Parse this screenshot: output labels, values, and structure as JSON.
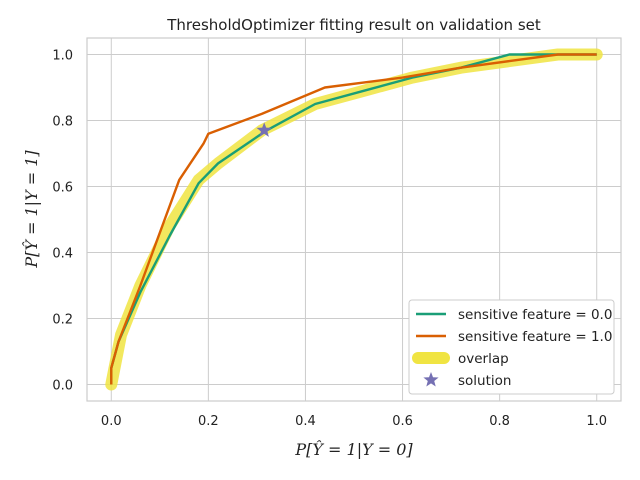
{
  "chart_data": {
    "type": "line",
    "title": "ThresholdOptimizer fitting result on validation set",
    "xlabel": "P[Ŷ = 1|Y = 0]",
    "ylabel": "P[Ŷ = 1|Y = 1]",
    "xlim": [
      -0.05,
      1.05
    ],
    "ylim": [
      -0.05,
      1.05
    ],
    "x_ticks": [
      0.0,
      0.2,
      0.4,
      0.6,
      0.8,
      1.0
    ],
    "y_ticks": [
      0.0,
      0.2,
      0.4,
      0.6,
      0.8,
      1.0
    ],
    "x_tick_labels": [
      "0.0",
      "0.2",
      "0.4",
      "0.6",
      "0.8",
      "1.0"
    ],
    "y_tick_labels": [
      "0.0",
      "0.2",
      "0.4",
      "0.6",
      "0.8",
      "1.0"
    ],
    "grid": true,
    "legend_position": "bottom-right",
    "series": [
      {
        "name": "overlap",
        "kind": "overlap-band",
        "color": "#f0e442",
        "points": [
          [
            0.0,
            0.0
          ],
          [
            0.02,
            0.15
          ],
          [
            0.06,
            0.3
          ],
          [
            0.12,
            0.48
          ],
          [
            0.18,
            0.62
          ],
          [
            0.22,
            0.67
          ],
          [
            0.31,
            0.77
          ],
          [
            0.42,
            0.85
          ],
          [
            0.52,
            0.89
          ],
          [
            0.62,
            0.93
          ],
          [
            0.72,
            0.96
          ],
          [
            0.82,
            0.98
          ],
          [
            0.92,
            1.0
          ],
          [
            1.0,
            1.0
          ]
        ]
      },
      {
        "name": "sensitive feature = 0.0",
        "color": "#1a9e77",
        "points": [
          [
            0.0,
            0.0
          ],
          [
            0.0,
            0.05
          ],
          [
            0.015,
            0.13
          ],
          [
            0.06,
            0.28
          ],
          [
            0.12,
            0.45
          ],
          [
            0.18,
            0.61
          ],
          [
            0.22,
            0.67
          ],
          [
            0.32,
            0.77
          ],
          [
            0.42,
            0.85
          ],
          [
            0.52,
            0.89
          ],
          [
            0.62,
            0.93
          ],
          [
            0.72,
            0.96
          ],
          [
            0.82,
            1.0
          ],
          [
            0.9,
            1.0
          ],
          [
            1.0,
            1.0
          ]
        ]
      },
      {
        "name": "sensitive feature = 1.0",
        "color": "#d95f02",
        "points": [
          [
            0.0,
            0.0
          ],
          [
            0.0,
            0.05
          ],
          [
            0.015,
            0.13
          ],
          [
            0.06,
            0.3
          ],
          [
            0.14,
            0.62
          ],
          [
            0.19,
            0.73
          ],
          [
            0.2,
            0.76
          ],
          [
            0.31,
            0.82
          ],
          [
            0.44,
            0.9
          ],
          [
            0.6,
            0.93
          ],
          [
            0.72,
            0.96
          ],
          [
            0.82,
            0.98
          ],
          [
            0.92,
            1.0
          ],
          [
            1.0,
            1.0
          ]
        ]
      }
    ],
    "solution": {
      "name": "solution",
      "x": 0.315,
      "y": 0.77,
      "color": "#7570b3"
    }
  }
}
